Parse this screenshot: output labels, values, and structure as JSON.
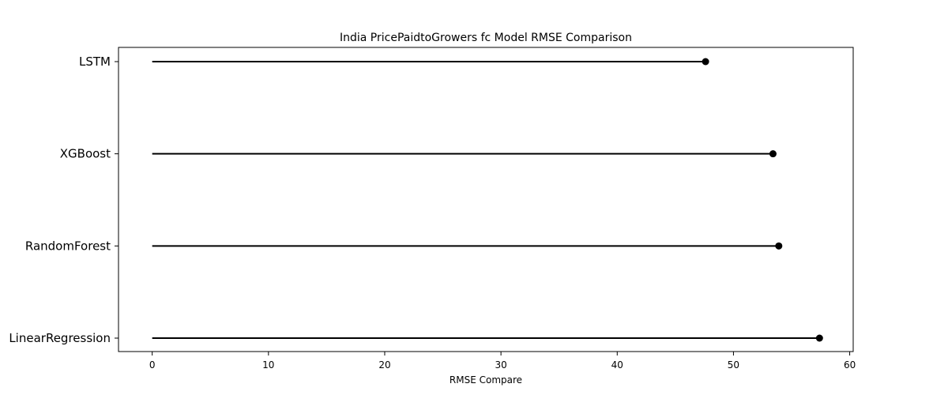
{
  "chart_data": {
    "type": "lollipop",
    "orientation": "horizontal",
    "title": "India PricePaidtoGrowers fc Model RMSE Comparison",
    "xlabel": "RMSE Compare",
    "ylabel": "",
    "categories": [
      "LSTM",
      "XGBoost",
      "RandomForest",
      "LinearRegression"
    ],
    "values": [
      47.6,
      53.4,
      53.9,
      57.4
    ],
    "baseline": 0,
    "xlim": [
      -2.9,
      60.3
    ],
    "xticks": [
      0,
      10,
      20,
      30,
      40,
      50,
      60
    ],
    "grid": false,
    "legend": "none",
    "colors": {
      "stem": "#000000",
      "marker": "#000000",
      "frame": "#000000"
    }
  }
}
